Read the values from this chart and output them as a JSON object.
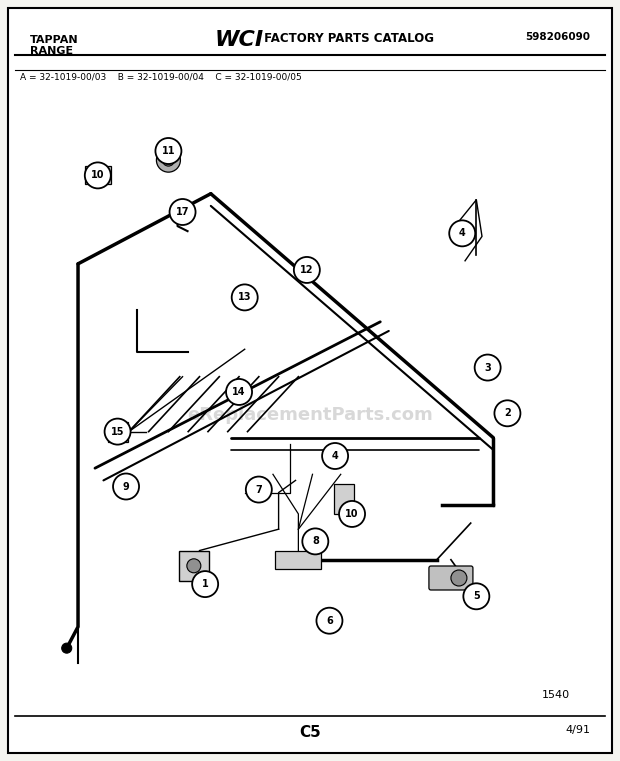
{
  "bg_color": "#f5f5f0",
  "page_bg": "#ffffff",
  "border_color": "#000000",
  "header_brand": "TAPPAN\nRANGE",
  "header_logo": "WCI",
  "header_catalog": " FACTORY PARTS CATALOG",
  "header_partnum": "598206090",
  "subheader": "A = 32-1019-00/03    B = 32-1019-00/04    C = 32-1019-00/05",
  "footer_page": "C5",
  "footer_date": "4/91",
  "ref_num": "1540",
  "watermark": "eReplacementParts.com",
  "part_circles": [
    {
      "n": "1",
      "fx": 0.31,
      "fy": 0.81
    },
    {
      "n": "2",
      "fx": 0.845,
      "fy": 0.53
    },
    {
      "n": "3",
      "fx": 0.81,
      "fy": 0.455
    },
    {
      "n": "4",
      "fx": 0.765,
      "fy": 0.235
    },
    {
      "n": "4",
      "fx": 0.54,
      "fy": 0.6
    },
    {
      "n": "5",
      "fx": 0.79,
      "fy": 0.83
    },
    {
      "n": "6",
      "fx": 0.53,
      "fy": 0.87
    },
    {
      "n": "7",
      "fx": 0.405,
      "fy": 0.655
    },
    {
      "n": "8",
      "fx": 0.505,
      "fy": 0.74
    },
    {
      "n": "9",
      "fx": 0.17,
      "fy": 0.65
    },
    {
      "n": "10",
      "fx": 0.57,
      "fy": 0.695
    },
    {
      "n": "11",
      "fx": 0.245,
      "fy": 0.1
    },
    {
      "n": "12",
      "fx": 0.49,
      "fy": 0.295
    },
    {
      "n": "13",
      "fx": 0.38,
      "fy": 0.34
    },
    {
      "n": "14",
      "fx": 0.37,
      "fy": 0.495
    },
    {
      "n": "15",
      "fx": 0.155,
      "fy": 0.56
    },
    {
      "n": "17",
      "fx": 0.27,
      "fy": 0.2
    },
    {
      "n": "10",
      "fx": 0.12,
      "fy": 0.14
    }
  ]
}
